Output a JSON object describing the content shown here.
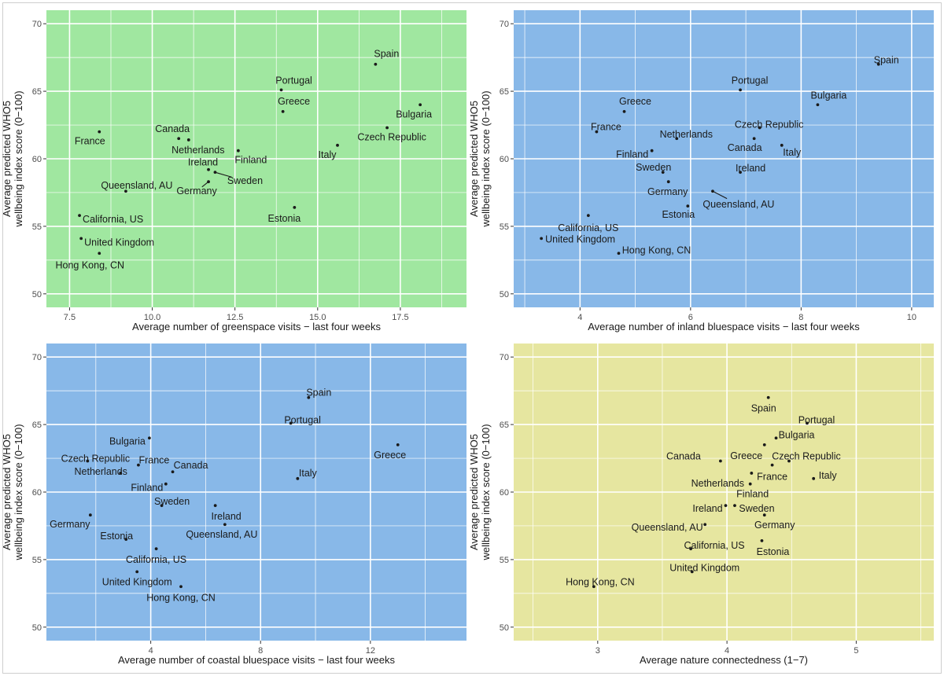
{
  "figure_title": "",
  "colors": {
    "green_panel": "#a0e7a0",
    "blue_panel": "#88b8e8",
    "yellow_panel": "#e6e6a0",
    "grid": "#ffffff",
    "point": "#1a1a1a"
  },
  "chart_data": [
    {
      "id": "greenspace",
      "type": "scatter",
      "title": "",
      "xlabel": "Average number of greenspace visits − last four weeks",
      "ylabel": [
        "Average predicted WHO5",
        "wellbeing index score (0−100)"
      ],
      "xlim": [
        6.8,
        19.5
      ],
      "ylim": [
        49,
        71
      ],
      "x_ticks": [
        7.5,
        10.0,
        12.5,
        15.0,
        17.5
      ],
      "x_tick_labels": [
        "7.5",
        "10.0",
        "12.5",
        "15.0",
        "17.5"
      ],
      "x_minor": [
        8.75,
        11.25,
        13.75,
        16.25,
        18.75
      ],
      "y_ticks": [
        50,
        55,
        60,
        65,
        70
      ],
      "y_tick_labels": [
        "50",
        "55",
        "60",
        "65",
        "70"
      ],
      "background": "#a0e7a0",
      "points": [
        {
          "label": "Spain",
          "x": 16.75,
          "y": 67.0,
          "dx": 14,
          "dy": -13,
          "anchor": "middle"
        },
        {
          "label": "Portugal",
          "x": 13.9,
          "y": 65.1,
          "dx": 16,
          "dy": -12,
          "anchor": "middle"
        },
        {
          "label": "Bulgaria",
          "x": 18.1,
          "y": 64.0,
          "dx": -8,
          "dy": 12,
          "anchor": "middle"
        },
        {
          "label": "Greece",
          "x": 13.95,
          "y": 63.5,
          "dx": 14,
          "dy": -13,
          "anchor": "middle"
        },
        {
          "label": "Czech Republic",
          "x": 17.1,
          "y": 62.3,
          "dx": 6,
          "dy": 12,
          "anchor": "middle"
        },
        {
          "label": "France",
          "x": 8.4,
          "y": 62.0,
          "dx": -12,
          "dy": 12,
          "anchor": "middle"
        },
        {
          "label": "Canada",
          "x": 10.8,
          "y": 61.5,
          "dx": -8,
          "dy": -12,
          "anchor": "middle"
        },
        {
          "label": "Netherlands",
          "x": 11.1,
          "y": 61.4,
          "dx": 12,
          "dy": 13,
          "anchor": "middle"
        },
        {
          "label": "Italy",
          "x": 15.6,
          "y": 61.0,
          "dx": -13,
          "dy": 12,
          "anchor": "middle"
        },
        {
          "label": "Finland",
          "x": 12.6,
          "y": 60.6,
          "dx": 16,
          "dy": 12,
          "anchor": "middle"
        },
        {
          "label": "Ireland",
          "x": 11.7,
          "y": 59.2,
          "dx": -7,
          "dy": -9,
          "anchor": "middle"
        },
        {
          "label": "Sweden",
          "x": 11.9,
          "y": 59.0,
          "dx": 38,
          "dy": 11,
          "anchor": "middle",
          "leader": true
        },
        {
          "label": "Germany",
          "x": 11.7,
          "y": 58.3,
          "dx": -15,
          "dy": 12,
          "anchor": "middle",
          "leader": true
        },
        {
          "label": "Queensland, AU",
          "x": 9.2,
          "y": 57.6,
          "dx": 14,
          "dy": -7,
          "anchor": "middle"
        },
        {
          "label": "Estonia",
          "x": 14.3,
          "y": 56.4,
          "dx": -13,
          "dy": 14,
          "anchor": "middle"
        },
        {
          "label": "California, US",
          "x": 7.8,
          "y": 55.8,
          "dx": 4,
          "dy": 5,
          "anchor": "start"
        },
        {
          "label": "United Kingdom",
          "x": 7.85,
          "y": 54.1,
          "dx": 4,
          "dy": 5,
          "anchor": "start"
        },
        {
          "label": "Hong Kong, CN",
          "x": 8.4,
          "y": 53.0,
          "dx": -12,
          "dy": 15,
          "anchor": "middle"
        }
      ]
    },
    {
      "id": "inland-bluespace",
      "type": "scatter",
      "title": "",
      "xlabel": "Average number of inland bluespace visits − last four weeks",
      "ylabel": [
        "Average predicted WHO5",
        "wellbeing index score (0−100)"
      ],
      "xlim": [
        2.8,
        10.4
      ],
      "ylim": [
        49,
        71
      ],
      "x_ticks": [
        4,
        6,
        8,
        10
      ],
      "x_tick_labels": [
        "4",
        "6",
        "8",
        "10"
      ],
      "x_minor": [
        3,
        5,
        7,
        9
      ],
      "y_ticks": [
        50,
        55,
        60,
        65,
        70
      ],
      "y_tick_labels": [
        "50",
        "55",
        "60",
        "65",
        "70"
      ],
      "background": "#88b8e8",
      "points": [
        {
          "label": "Spain",
          "x": 9.4,
          "y": 67.0,
          "dx": 10,
          "dy": -5,
          "anchor": "middle"
        },
        {
          "label": "Portugal",
          "x": 6.9,
          "y": 65.1,
          "dx": 12,
          "dy": -12,
          "anchor": "middle"
        },
        {
          "label": "Bulgaria",
          "x": 8.3,
          "y": 64.0,
          "dx": 14,
          "dy": -12,
          "anchor": "middle"
        },
        {
          "label": "Greece",
          "x": 4.8,
          "y": 63.5,
          "dx": 14,
          "dy": -13,
          "anchor": "middle"
        },
        {
          "label": "Czech Republic",
          "x": 7.25,
          "y": 62.3,
          "dx": 12,
          "dy": -4,
          "anchor": "middle"
        },
        {
          "label": "France",
          "x": 4.3,
          "y": 62.0,
          "dx": 12,
          "dy": -6,
          "anchor": "middle"
        },
        {
          "label": "Netherlands",
          "x": 5.75,
          "y": 61.5,
          "dx": 12,
          "dy": -5,
          "anchor": "middle"
        },
        {
          "label": "Canada",
          "x": 7.15,
          "y": 61.5,
          "dx": -12,
          "dy": 12,
          "anchor": "middle"
        },
        {
          "label": "Italy",
          "x": 7.65,
          "y": 61.0,
          "dx": 13,
          "dy": 9,
          "anchor": "middle"
        },
        {
          "label": "Finland",
          "x": 5.3,
          "y": 60.6,
          "dx": -25,
          "dy": 5,
          "anchor": "middle"
        },
        {
          "label": "Sweden",
          "x": 5.5,
          "y": 59.0,
          "dx": -12,
          "dy": -6,
          "anchor": "middle"
        },
        {
          "label": "Ireland",
          "x": 6.9,
          "y": 59.0,
          "dx": 13,
          "dy": -5,
          "anchor": "middle"
        },
        {
          "label": "Germany",
          "x": 5.6,
          "y": 58.3,
          "dx": -1,
          "dy": 13,
          "anchor": "middle"
        },
        {
          "label": "Queensland, AU",
          "x": 6.4,
          "y": 57.6,
          "dx": 33,
          "dy": 17,
          "anchor": "middle",
          "leader": true
        },
        {
          "label": "Estonia",
          "x": 5.95,
          "y": 56.5,
          "dx": -12,
          "dy": 11,
          "anchor": "middle"
        },
        {
          "label": "California, US",
          "x": 4.15,
          "y": 55.8,
          "dx": 0,
          "dy": 16,
          "anchor": "middle"
        },
        {
          "label": "United Kingdom",
          "x": 3.3,
          "y": 54.1,
          "dx": 5,
          "dy": 1,
          "anchor": "start"
        },
        {
          "label": "Hong Kong, CN",
          "x": 4.7,
          "y": 53.0,
          "dx": 48,
          "dy": -4,
          "anchor": "middle"
        }
      ]
    },
    {
      "id": "coastal-bluespace",
      "type": "scatter",
      "title": "",
      "xlabel": "Average number of coastal bluespace visits − last four weeks",
      "ylabel": [
        "Average predicted WHO5",
        "wellbeing index score (0−100)"
      ],
      "xlim": [
        0.2,
        15.5
      ],
      "ylim": [
        49,
        71
      ],
      "x_ticks": [
        4,
        8,
        12
      ],
      "x_tick_labels": [
        "4",
        "8",
        "12"
      ],
      "x_minor": [
        2,
        6,
        10,
        14
      ],
      "y_ticks": [
        50,
        55,
        60,
        65,
        70
      ],
      "y_tick_labels": [
        "50",
        "55",
        "60",
        "65",
        "70"
      ],
      "background": "#88b8e8",
      "points": [
        {
          "label": "Spain",
          "x": 9.75,
          "y": 67.0,
          "dx": 13,
          "dy": -6,
          "anchor": "middle"
        },
        {
          "label": "Portugal",
          "x": 9.1,
          "y": 65.1,
          "dx": 15,
          "dy": -4,
          "anchor": "middle"
        },
        {
          "label": "Greece",
          "x": 13.0,
          "y": 63.5,
          "dx": -10,
          "dy": 13,
          "anchor": "middle"
        },
        {
          "label": "Bulgaria",
          "x": 3.95,
          "y": 64.0,
          "dx": -28,
          "dy": 4,
          "anchor": "middle"
        },
        {
          "label": "Czech Republic",
          "x": 1.7,
          "y": 62.3,
          "dx": 10,
          "dy": -3,
          "anchor": "middle"
        },
        {
          "label": "France",
          "x": 3.55,
          "y": 62.0,
          "dx": 20,
          "dy": -6,
          "anchor": "middle"
        },
        {
          "label": "Canada",
          "x": 4.8,
          "y": 61.5,
          "dx": 23,
          "dy": -8,
          "anchor": "middle"
        },
        {
          "label": "Netherlands",
          "x": 2.9,
          "y": 61.4,
          "dx": -25,
          "dy": -2,
          "anchor": "middle"
        },
        {
          "label": "Italy",
          "x": 9.35,
          "y": 61.0,
          "dx": 13,
          "dy": -7,
          "anchor": "middle"
        },
        {
          "label": "Finland",
          "x": 4.55,
          "y": 60.6,
          "dx": -24,
          "dy": 5,
          "anchor": "middle"
        },
        {
          "label": "Sweden",
          "x": 4.4,
          "y": 59.0,
          "dx": 13,
          "dy": -5,
          "anchor": "middle"
        },
        {
          "label": "Ireland",
          "x": 6.35,
          "y": 59.0,
          "dx": 14,
          "dy": 14,
          "anchor": "middle"
        },
        {
          "label": "Germany",
          "x": 1.8,
          "y": 58.3,
          "dx": -26,
          "dy": 12,
          "anchor": "middle"
        },
        {
          "label": "Queensland, AU",
          "x": 6.7,
          "y": 57.6,
          "dx": -4,
          "dy": 13,
          "anchor": "middle"
        },
        {
          "label": "Estonia",
          "x": 3.1,
          "y": 56.5,
          "dx": -12,
          "dy": -4,
          "anchor": "middle"
        },
        {
          "label": "California, US",
          "x": 4.2,
          "y": 55.8,
          "dx": 0,
          "dy": 14,
          "anchor": "middle"
        },
        {
          "label": "United Kingdom",
          "x": 3.5,
          "y": 54.1,
          "dx": 0,
          "dy": 13,
          "anchor": "middle"
        },
        {
          "label": "Hong Kong, CN",
          "x": 5.1,
          "y": 53.0,
          "dx": 0,
          "dy": 14,
          "anchor": "middle"
        }
      ]
    },
    {
      "id": "nature-connectedness",
      "type": "scatter",
      "title": "",
      "xlabel": "Average nature connectedness (1−7)",
      "ylabel": [
        "Average predicted WHO5",
        "wellbeing index score (0−100)"
      ],
      "xlim": [
        2.35,
        5.6
      ],
      "ylim": [
        49,
        71
      ],
      "x_ticks": [
        3,
        4,
        5
      ],
      "x_tick_labels": [
        "3",
        "4",
        "5"
      ],
      "x_minor": [
        2.5,
        3.5,
        4.5,
        5.5
      ],
      "y_ticks": [
        50,
        55,
        60,
        65,
        70
      ],
      "y_tick_labels": [
        "50",
        "55",
        "60",
        "65",
        "70"
      ],
      "background": "#e6e6a0",
      "points": [
        {
          "label": "Spain",
          "x": 4.32,
          "y": 67.0,
          "dx": -6,
          "dy": 14,
          "anchor": "middle"
        },
        {
          "label": "Portugal",
          "x": 4.62,
          "y": 65.1,
          "dx": 12,
          "dy": -4,
          "anchor": "middle"
        },
        {
          "label": "Bulgaria",
          "x": 4.38,
          "y": 64.0,
          "dx": 26,
          "dy": -4,
          "anchor": "middle"
        },
        {
          "label": "Greece",
          "x": 4.29,
          "y": 63.5,
          "dx": -23,
          "dy": 14,
          "anchor": "middle"
        },
        {
          "label": "Czech Republic",
          "x": 4.48,
          "y": 62.3,
          "dx": 22,
          "dy": -6,
          "anchor": "middle"
        },
        {
          "label": "Canada",
          "x": 3.95,
          "y": 62.3,
          "dx": -47,
          "dy": -6,
          "anchor": "middle"
        },
        {
          "label": "France",
          "x": 4.35,
          "y": 62.0,
          "dx": 0,
          "dy": 15,
          "anchor": "middle"
        },
        {
          "label": "Netherlands",
          "x": 4.19,
          "y": 61.4,
          "dx": -43,
          "dy": 13,
          "anchor": "middle"
        },
        {
          "label": "Italy",
          "x": 4.67,
          "y": 61.0,
          "dx": 18,
          "dy": -4,
          "anchor": "middle"
        },
        {
          "label": "Finland",
          "x": 4.18,
          "y": 60.6,
          "dx": 3,
          "dy": 13,
          "anchor": "middle"
        },
        {
          "label": "Ireland",
          "x": 3.99,
          "y": 59.0,
          "dx": -23,
          "dy": 4,
          "anchor": "middle"
        },
        {
          "label": "Sweden",
          "x": 4.06,
          "y": 59.0,
          "dx": 28,
          "dy": 4,
          "anchor": "middle"
        },
        {
          "label": "Germany",
          "x": 4.29,
          "y": 58.3,
          "dx": 13,
          "dy": 13,
          "anchor": "middle"
        },
        {
          "label": "Queensland, AU",
          "x": 3.83,
          "y": 57.6,
          "dx": -48,
          "dy": 4,
          "anchor": "middle"
        },
        {
          "label": "California, US",
          "x": 3.72,
          "y": 55.8,
          "dx": 30,
          "dy": -4,
          "anchor": "middle"
        },
        {
          "label": "Estonia",
          "x": 4.27,
          "y": 56.4,
          "dx": 14,
          "dy": 14,
          "anchor": "middle"
        },
        {
          "label": "United Kingdom",
          "x": 3.73,
          "y": 54.1,
          "dx": 16,
          "dy": -5,
          "anchor": "middle"
        },
        {
          "label": "Hong Kong, CN",
          "x": 2.97,
          "y": 53.0,
          "dx": 8,
          "dy": -6,
          "anchor": "middle"
        }
      ]
    }
  ]
}
